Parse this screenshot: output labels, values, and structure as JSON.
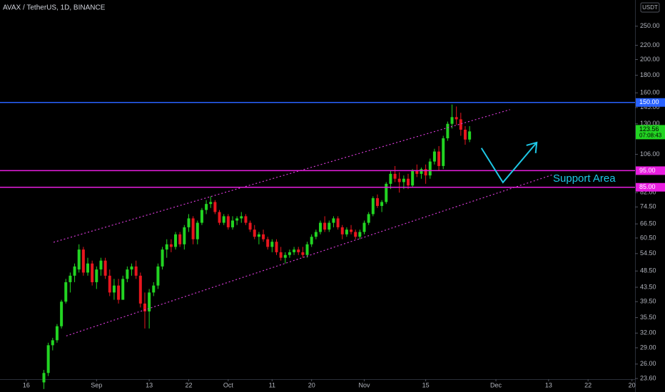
{
  "chart_data": {
    "type": "candlestick",
    "title": "AVAX / TetherUS, 1D, BINANCE",
    "unit": "USDT",
    "log_scale": true,
    "up_color": "#22d422",
    "down_color": "#e8161e",
    "xlim": [
      -6,
      138.7
    ],
    "xticks": [
      {
        "value": 0,
        "label": "16"
      },
      {
        "value": 16,
        "label": "Sep"
      },
      {
        "value": 28,
        "label": "13"
      },
      {
        "value": 37,
        "label": "22"
      },
      {
        "value": 46,
        "label": "Oct"
      },
      {
        "value": 56,
        "label": "11"
      },
      {
        "value": 65,
        "label": "20"
      },
      {
        "value": 77,
        "label": "Nov"
      },
      {
        "value": 91,
        "label": "15"
      },
      {
        "value": 107,
        "label": "Dec"
      },
      {
        "value": 119,
        "label": "13"
      },
      {
        "value": 128,
        "label": "22"
      },
      {
        "value": 138,
        "label": "20"
      }
    ],
    "ylim": [
      23.5,
      298
    ],
    "yticks": [
      {
        "value": 250,
        "label": "250.00"
      },
      {
        "value": 220,
        "label": "220.00"
      },
      {
        "value": 200,
        "label": "200.00"
      },
      {
        "value": 180,
        "label": "180.00"
      },
      {
        "value": 160,
        "label": "160.00"
      },
      {
        "value": 145,
        "label": "145.00"
      },
      {
        "value": 130,
        "label": "130.00"
      },
      {
        "value": 106,
        "label": "106.00"
      },
      {
        "value": 82,
        "label": "82.00"
      },
      {
        "value": 74.5,
        "label": "74.50"
      },
      {
        "value": 66.5,
        "label": "66.50"
      },
      {
        "value": 60.5,
        "label": "60.50"
      },
      {
        "value": 54.5,
        "label": "54.50"
      },
      {
        "value": 48.5,
        "label": "48.50"
      },
      {
        "value": 43.5,
        "label": "43.50"
      },
      {
        "value": 39.5,
        "label": "39.50"
      },
      {
        "value": 35.5,
        "label": "35.50"
      },
      {
        "value": 32,
        "label": "32.00"
      },
      {
        "value": 29,
        "label": "29.00"
      },
      {
        "value": 26,
        "label": "26.00"
      },
      {
        "value": 23.6,
        "label": "23.60"
      }
    ],
    "candles": [
      [
        4,
        23,
        25,
        22,
        24.5
      ],
      [
        5,
        24.5,
        30,
        24,
        29.5
      ],
      [
        6,
        29.5,
        31,
        28.5,
        30.5
      ],
      [
        7,
        30.5,
        34,
        30,
        33.5
      ],
      [
        8,
        33.5,
        40,
        33,
        39.5
      ],
      [
        9,
        39.5,
        46,
        39,
        45
      ],
      [
        10,
        45,
        48,
        42,
        47
      ],
      [
        11,
        47,
        51,
        45,
        50
      ],
      [
        12,
        49,
        58,
        48,
        56
      ],
      [
        13,
        56,
        57,
        47,
        48
      ],
      [
        14,
        48,
        53,
        47,
        51
      ],
      [
        15,
        51,
        52,
        44,
        45
      ],
      [
        16,
        45,
        50,
        43,
        49
      ],
      [
        17,
        49,
        53,
        47,
        52
      ],
      [
        18,
        52,
        53,
        46,
        47
      ],
      [
        19,
        47,
        49,
        41,
        42
      ],
      [
        20,
        42,
        46,
        40,
        44
      ],
      [
        21,
        44,
        46,
        39,
        40
      ],
      [
        22,
        40,
        47,
        40,
        46
      ],
      [
        23,
        46,
        50,
        45,
        49
      ],
      [
        24,
        49,
        51,
        47,
        50
      ],
      [
        25,
        50,
        52,
        46,
        47
      ],
      [
        26,
        47,
        48,
        38,
        39
      ],
      [
        27,
        39,
        42,
        33,
        37
      ],
      [
        28,
        37,
        43,
        33,
        42
      ],
      [
        29,
        42,
        45,
        41,
        44
      ],
      [
        30,
        44,
        51,
        43,
        50
      ],
      [
        31,
        50,
        57,
        49,
        56
      ],
      [
        32,
        56,
        60,
        53,
        58
      ],
      [
        33,
        58,
        60,
        55,
        57
      ],
      [
        34,
        57,
        63,
        56,
        62
      ],
      [
        35,
        62,
        63,
        57,
        58
      ],
      [
        36,
        58,
        66,
        56,
        65
      ],
      [
        37,
        65,
        71,
        63,
        69
      ],
      [
        38,
        69,
        70,
        58,
        60
      ],
      [
        39,
        60,
        68,
        58,
        67
      ],
      [
        40,
        67,
        74,
        66,
        73
      ],
      [
        41,
        73,
        78,
        71,
        76
      ],
      [
        42,
        76,
        80,
        74,
        77
      ],
      [
        43,
        77,
        78,
        71,
        72
      ],
      [
        44,
        72,
        73,
        66,
        67
      ],
      [
        45,
        67,
        71,
        66,
        70
      ],
      [
        46,
        70,
        71,
        64,
        65
      ],
      [
        47,
        65,
        70,
        64,
        68
      ],
      [
        48,
        68,
        70,
        66,
        69
      ],
      [
        49,
        69,
        72,
        67,
        70
      ],
      [
        50,
        70,
        71,
        66,
        67
      ],
      [
        51,
        67,
        68,
        63,
        64
      ],
      [
        52,
        64,
        66,
        60,
        61
      ],
      [
        53,
        61,
        63,
        58,
        62
      ],
      [
        54,
        62,
        64,
        59,
        60
      ],
      [
        55,
        60,
        61,
        56,
        57
      ],
      [
        56,
        57,
        60,
        55,
        59
      ],
      [
        57,
        59,
        60,
        54,
        55
      ],
      [
        58,
        55,
        57,
        52,
        53
      ],
      [
        59,
        53,
        55,
        51,
        54
      ],
      [
        60,
        54,
        56,
        53,
        55
      ],
      [
        61,
        55,
        57,
        54,
        56
      ],
      [
        62,
        56,
        57,
        54,
        55
      ],
      [
        63,
        55,
        57,
        53,
        54
      ],
      [
        64,
        54,
        59,
        53,
        58
      ],
      [
        65,
        58,
        62,
        57,
        61
      ],
      [
        66,
        61,
        64,
        60,
        63
      ],
      [
        67,
        63,
        68,
        62,
        67
      ],
      [
        68,
        67,
        70,
        63,
        64
      ],
      [
        69,
        64,
        68,
        63,
        67
      ],
      [
        70,
        67,
        70,
        65,
        69
      ],
      [
        71,
        69,
        70,
        64,
        65
      ],
      [
        72,
        65,
        66,
        60,
        62
      ],
      [
        73,
        62,
        65,
        61,
        64
      ],
      [
        74,
        64,
        66,
        62,
        63
      ],
      [
        75,
        63,
        64,
        60,
        61
      ],
      [
        76,
        61,
        64,
        60,
        63
      ],
      [
        77,
        63,
        68,
        62,
        67
      ],
      [
        78,
        67,
        72,
        66,
        71
      ],
      [
        79,
        71,
        80,
        70,
        79
      ],
      [
        80,
        79,
        81,
        74,
        75
      ],
      [
        81,
        75,
        78,
        72,
        77
      ],
      [
        82,
        77,
        88,
        76,
        87
      ],
      [
        83,
        87,
        95,
        84,
        93
      ],
      [
        84,
        93,
        98,
        88,
        90
      ],
      [
        85,
        90,
        94,
        82,
        88
      ],
      [
        86,
        88,
        92,
        84,
        90
      ],
      [
        87,
        90,
        93,
        84,
        86
      ],
      [
        88,
        86,
        96,
        85,
        95
      ],
      [
        89,
        95,
        99,
        91,
        93
      ],
      [
        90,
        93,
        97,
        90,
        96
      ],
      [
        91,
        96,
        99,
        87,
        92
      ],
      [
        92,
        92,
        103,
        90,
        101
      ],
      [
        93,
        101,
        110,
        99,
        108
      ],
      [
        94,
        108,
        112,
        95,
        98
      ],
      [
        95,
        98,
        120,
        96,
        118
      ],
      [
        96,
        118,
        132,
        116,
        130
      ],
      [
        97,
        130,
        148,
        126,
        136
      ],
      [
        98,
        136,
        146,
        129,
        134
      ],
      [
        99,
        134,
        140,
        120,
        125
      ],
      [
        100,
        125,
        128,
        113,
        117
      ],
      [
        101,
        117,
        128,
        115,
        123.56
      ]
    ],
    "levels": [
      {
        "value": 150,
        "label": "150.00",
        "color": "#2962ff"
      },
      {
        "value": 95,
        "label": "95.00",
        "color": "#e91ee0"
      },
      {
        "value": 85,
        "label": "85.00",
        "color": "#e91ee0"
      }
    ],
    "last_price": {
      "value": 123.56,
      "countdown": "07:08:43",
      "color": "#22d422"
    },
    "channel": {
      "color": "#d43ad4",
      "lines": [
        [
          [
            6.2,
            58.8
          ],
          [
            110.2,
            143
          ]
        ],
        [
          [
            9.1,
            31.4
          ],
          [
            120,
            92.5
          ]
        ]
      ]
    },
    "arrow": {
      "color": "#1ec8e6",
      "points": [
        [
          103.7,
          110.5
        ],
        [
          108.6,
          87.8
        ],
        [
          116.3,
          114.7
        ]
      ]
    },
    "annotation": {
      "text": "Support Area",
      "color": "#1ec8e6"
    }
  }
}
